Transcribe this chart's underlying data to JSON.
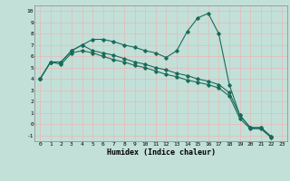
{
  "xlabel": "Humidex (Indice chaleur)",
  "xlim": [
    -0.5,
    23.5
  ],
  "ylim": [
    -1.5,
    10.5
  ],
  "xticks": [
    0,
    1,
    2,
    3,
    4,
    5,
    6,
    7,
    8,
    9,
    10,
    11,
    12,
    13,
    14,
    15,
    16,
    17,
    18,
    19,
    20,
    21,
    22,
    23
  ],
  "yticks": [
    -1,
    0,
    1,
    2,
    3,
    4,
    5,
    6,
    7,
    8,
    9,
    10
  ],
  "bg_color": "#c2e0d8",
  "grid_color": "#e8b8b8",
  "line_color": "#1a6b5a",
  "line1_x": [
    0,
    1,
    2,
    3,
    4,
    5,
    6,
    7,
    8,
    9,
    10,
    11,
    12,
    13,
    14,
    15,
    16,
    17,
    18,
    19,
    20,
    21,
    22
  ],
  "line1_y": [
    4.0,
    5.5,
    5.5,
    6.5,
    7.0,
    7.5,
    7.5,
    7.3,
    7.0,
    6.8,
    6.5,
    6.3,
    5.9,
    6.5,
    8.2,
    9.4,
    9.8,
    8.0,
    3.5,
    0.8,
    -0.3,
    -0.3,
    -1.1
  ],
  "line2_x": [
    0,
    1,
    2,
    3,
    4,
    5,
    6,
    7,
    8,
    9,
    10,
    11,
    12,
    13,
    14,
    15,
    16,
    17,
    18,
    19,
    20,
    21,
    22
  ],
  "line2_y": [
    4.0,
    5.5,
    5.5,
    6.5,
    7.0,
    6.5,
    6.3,
    6.1,
    5.8,
    5.5,
    5.3,
    5.0,
    4.8,
    4.5,
    4.3,
    4.0,
    3.8,
    3.5,
    2.8,
    0.8,
    -0.3,
    -0.3,
    -1.1
  ],
  "line3_x": [
    0,
    1,
    2,
    3,
    4,
    5,
    6,
    7,
    8,
    9,
    10,
    11,
    12,
    13,
    14,
    15,
    16,
    17,
    18,
    19,
    20,
    21,
    22
  ],
  "line3_y": [
    4.0,
    5.5,
    5.3,
    6.3,
    6.5,
    6.3,
    6.0,
    5.7,
    5.5,
    5.2,
    5.0,
    4.7,
    4.4,
    4.2,
    3.9,
    3.7,
    3.5,
    3.2,
    2.5,
    0.5,
    -0.4,
    -0.4,
    -1.2
  ],
  "figsize": [
    3.2,
    2.0
  ],
  "dpi": 100
}
